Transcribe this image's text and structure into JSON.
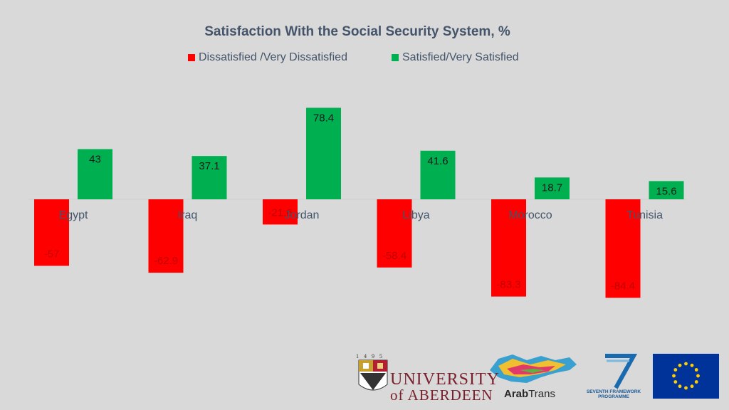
{
  "chart_data": {
    "type": "bar",
    "title": "Satisfaction With the Social Security System, %",
    "categories": [
      "Egypt",
      "Iraq",
      "Jordan",
      "Libya",
      "Morocco",
      "Tunisia"
    ],
    "series": [
      {
        "name": "Dissatisfied /Very Dissatisfied",
        "color": "#ff0000",
        "values": [
          -57,
          -62.9,
          -21.6,
          -58.4,
          -83.3,
          -84.4
        ],
        "labels": [
          "-57",
          "-62.9",
          "-21.6",
          "-58.4",
          "-83.3",
          "-84.4"
        ]
      },
      {
        "name": "Satisfied/Very Satisfied",
        "color": "#00b050",
        "values": [
          43,
          37.1,
          78.4,
          41.6,
          18.7,
          15.6
        ],
        "labels": [
          "43",
          "37.1",
          "78.4",
          "41.6",
          "18.7",
          "15.6"
        ]
      }
    ],
    "xlabel": "",
    "ylabel": "",
    "ylim": [
      -100,
      80
    ],
    "grid": false,
    "legend": "top-center"
  },
  "logos": {
    "university": {
      "year": "1495",
      "line1": "UNIVERSITY",
      "line2": "of ABERDEEN"
    },
    "arabtrans": {
      "bold": "Arab",
      "regular": "Trans"
    },
    "fp7": {
      "line1": "SEVENTH FRAMEWORK",
      "line2": "PROGRAMME"
    }
  },
  "colors": {
    "background": "#d9d9d9",
    "title": "#44546a",
    "negative": "#ff0000",
    "positive": "#00b050",
    "eu_blue": "#003399",
    "eu_star": "#ffcc00"
  }
}
